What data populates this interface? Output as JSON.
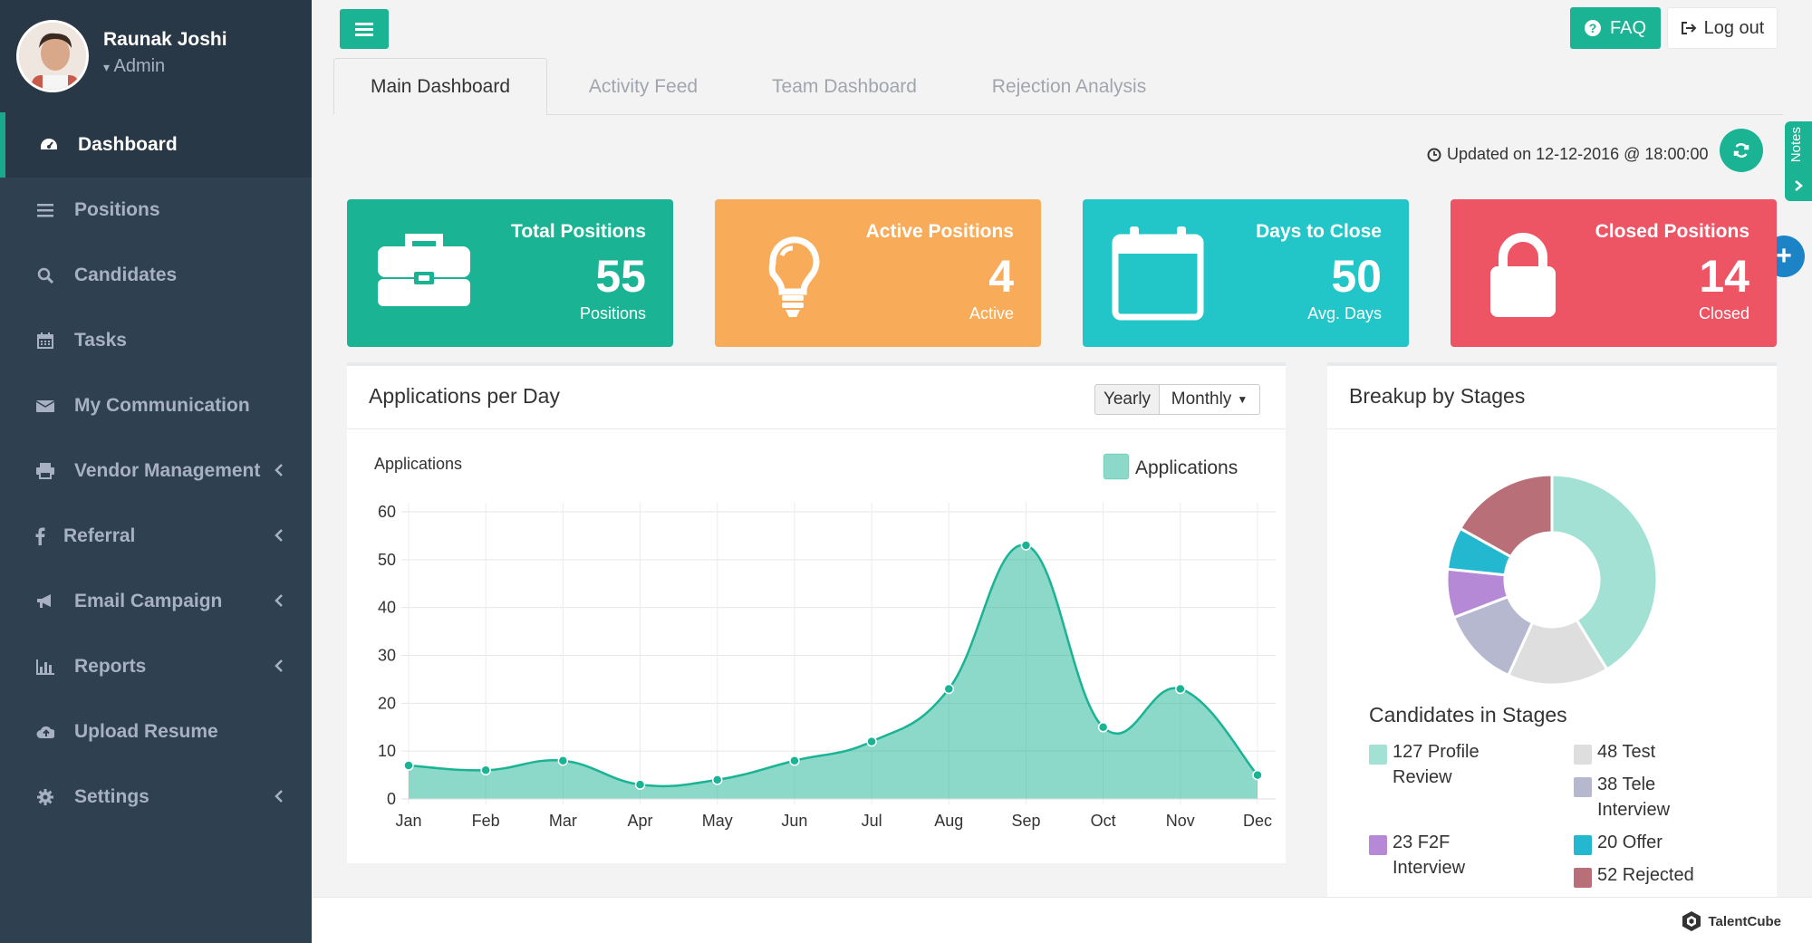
{
  "user": {
    "name": "Raunak Joshi",
    "role": "Admin"
  },
  "nav": [
    {
      "label": "Dashboard",
      "icon": "dashboard-icon",
      "active": true
    },
    {
      "label": "Positions",
      "icon": "list-icon"
    },
    {
      "label": "Candidates",
      "icon": "search-icon"
    },
    {
      "label": "Tasks",
      "icon": "calendar-icon"
    },
    {
      "label": "My Communication",
      "icon": "envelope-icon"
    },
    {
      "label": "Vendor Management",
      "icon": "printer-icon",
      "chevron": true
    },
    {
      "label": "Referral",
      "icon": "facebook-icon",
      "chevron": true
    },
    {
      "label": "Email Campaign",
      "icon": "bullhorn-icon",
      "chevron": true
    },
    {
      "label": "Reports",
      "icon": "bar-chart-icon",
      "chevron": true
    },
    {
      "label": "Upload Resume",
      "icon": "cloud-upload-icon"
    },
    {
      "label": "Settings",
      "icon": "gear-icon",
      "chevron": true
    }
  ],
  "topbar": {
    "faq": "FAQ",
    "logout": "Log out"
  },
  "tabs": [
    "Main Dashboard",
    "Activity Feed",
    "Team Dashboard",
    "Rejection Analysis"
  ],
  "updated": "Updated on 12-12-2016 @ 18:00:00",
  "notes_label": "Notes",
  "kpis": [
    {
      "title": "Total Positions",
      "value": "55",
      "sub": "Positions",
      "color": "#1ab394",
      "icon": "briefcase-icon"
    },
    {
      "title": "Active Positions",
      "value": "4",
      "sub": "Active",
      "color": "#f8ac59",
      "icon": "lightbulb-icon"
    },
    {
      "title": "Days to Close",
      "value": "50",
      "sub": "Avg. Days",
      "color": "#23c6c8",
      "icon": "calendar-icon"
    },
    {
      "title": "Closed Positions",
      "value": "14",
      "sub": "Closed",
      "color": "#ed5565",
      "icon": "lock-icon"
    }
  ],
  "apps_panel": {
    "title": "Applications per Day",
    "toggle_yearly": "Yearly",
    "toggle_monthly": "Monthly"
  },
  "chart_data": {
    "type": "area",
    "ylabel": "Applications",
    "categories": [
      "Jan",
      "Feb",
      "Mar",
      "Apr",
      "May",
      "Jun",
      "Jul",
      "Aug",
      "Sep",
      "Oct",
      "Nov",
      "Dec"
    ],
    "series": [
      {
        "name": "Applications",
        "values": [
          7,
          6,
          8,
          3,
          4,
          8,
          12,
          23,
          53,
          15,
          23,
          5
        ],
        "color": "#1ab394"
      }
    ],
    "ylim": [
      0,
      60
    ],
    "yticks": [
      0,
      10,
      20,
      30,
      40,
      50,
      60
    ],
    "grid": true,
    "legend": "top-right"
  },
  "stages_panel": {
    "title": "Breakup by Stages",
    "subtitle": "Candidates in Stages"
  },
  "stages": [
    {
      "value": 127,
      "label": "127 Profile Review",
      "color": "#a3e1d4"
    },
    {
      "value": 48,
      "label": "48 Test",
      "color": "#dedede"
    },
    {
      "value": 38,
      "label": "38 Tele Interview",
      "color": "#b5b8cf"
    },
    {
      "value": 23,
      "label": "23 F2F Interview",
      "color": "#b689d6"
    },
    {
      "value": 20,
      "label": "20 Offer",
      "color": "#23b7d0"
    },
    {
      "value": 52,
      "label": "52 Rejected",
      "color": "#b86f77"
    }
  ],
  "footer_brand": "TalentCube"
}
